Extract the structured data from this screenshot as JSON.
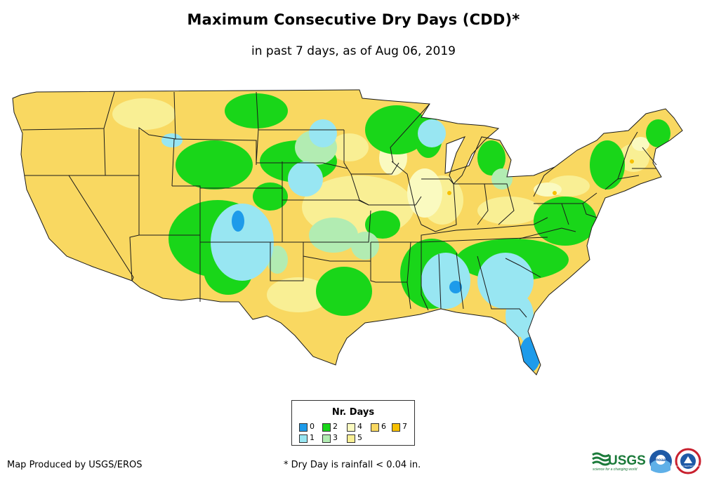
{
  "title": "Maximum Consecutive Dry Days (CDD)*",
  "subtitle": "in past 7 days, as of Aug 06, 2019",
  "legend": {
    "title": "Nr. Days",
    "items": [
      {
        "label": "0",
        "color": "#1e9bea"
      },
      {
        "label": "1",
        "color": "#98e6f2"
      },
      {
        "label": "2",
        "color": "#19d619"
      },
      {
        "label": "3",
        "color": "#b2ecb2"
      },
      {
        "label": "4",
        "color": "#fafac0"
      },
      {
        "label": "5",
        "color": "#f9ef94"
      },
      {
        "label": "6",
        "color": "#f9d861"
      },
      {
        "label": "7",
        "color": "#f7c000"
      }
    ]
  },
  "footer": {
    "producer": "Map Produced by USGS/EROS",
    "footnote": "* Dry Day is rainfall < 0.04 in."
  },
  "logos": {
    "usgs": "USGS",
    "usgs_tagline": "science for a changing world",
    "noaa": "noaa",
    "nws": "NATIONAL WEATHER SERVICE"
  },
  "map": {
    "region": "Contiguous United States",
    "base_color": "#f9d861",
    "border_color": "#1a1a1a"
  }
}
